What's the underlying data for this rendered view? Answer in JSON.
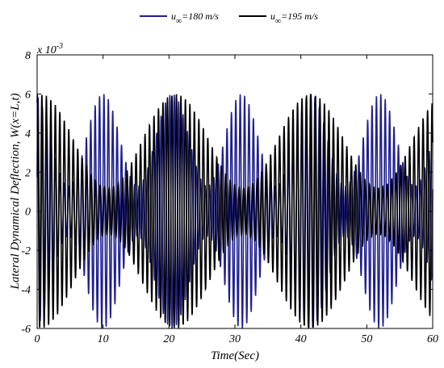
{
  "chart_data": {
    "type": "line",
    "title": "",
    "xlabel": "Time(Sec)",
    "ylabel": "Lateral Dynamical Deflection, W(x=L,t)",
    "exponent_label": "x 10",
    "exponent_power": "-3",
    "xlim": [
      0,
      60
    ],
    "ylim": [
      -6,
      8
    ],
    "y_scale_factor": 0.001,
    "xticks": [
      "0",
      "10",
      "20",
      "30",
      "40",
      "50",
      "60"
    ],
    "yticks": [
      "-6",
      "-4",
      "-2",
      "0",
      "2",
      "4",
      "6",
      "8"
    ],
    "grid": false,
    "legend_position": "top-center, outside plot",
    "series": [
      {
        "name": "u∞=180 m/s",
        "legend_base": "u",
        "legend_sub": "∞",
        "legend_rest": "=180 m/s",
        "color": "#1f1f8f",
        "description": "modulated oscillation, beat envelope approx. ±6 peaking near t≈10, 20, 33, 42, 51, 60",
        "carrier_frequency_hz": 1.5,
        "peak_amplitude": 6,
        "min_amplitude": 1.3,
        "beat_period_sec": 10.5,
        "first_envelope_peak_sec": 10
      },
      {
        "name": "u∞=195 m/s",
        "legend_base": "u",
        "legend_sub": "∞",
        "legend_rest": "=195 m/s",
        "color": "#000000",
        "description": "modulated oscillation, beat envelope approx. ±6 peaking near t≈1, 21, 42, 60 with minima near t≈11, 31, 51",
        "carrier_frequency_hz": 1.47,
        "peak_amplitude": 6,
        "min_amplitude": 1.2,
        "beat_period_sec": 20.5,
        "first_envelope_peak_sec": 0.5
      }
    ]
  }
}
